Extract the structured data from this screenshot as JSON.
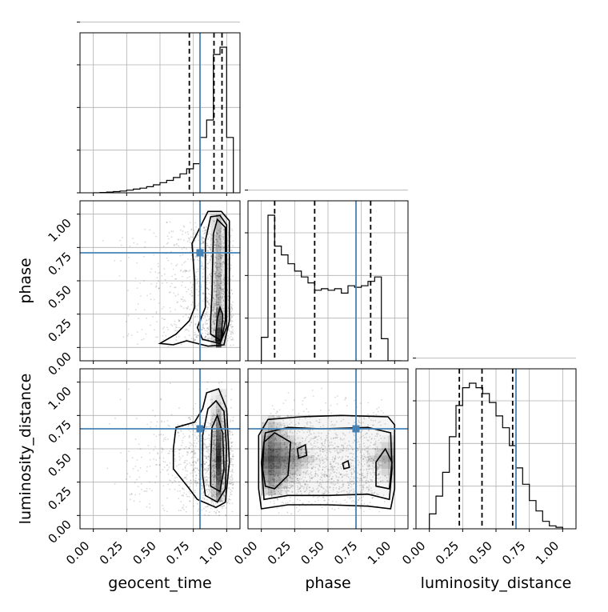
{
  "chart_data": {
    "type": "corner",
    "parameters": [
      "geocent_time",
      "phase",
      "luminosity_distance"
    ],
    "tick_labels": [
      "0.00",
      "0.25",
      "0.50",
      "0.75",
      "1.00"
    ],
    "tick_values": [
      0,
      0.25,
      0.5,
      0.75,
      1.0
    ],
    "axis_range": [
      -0.1,
      1.1
    ],
    "truth_color": "#4682b4",
    "grid": true,
    "truths": {
      "geocent_time": 0.8,
      "phase": 0.71,
      "luminosity_distance": 0.65
    },
    "quantiles": {
      "geocent_time": [
        0.72,
        0.905,
        0.965
      ],
      "phase": [
        0.1,
        0.4,
        0.82
      ],
      "luminosity_distance": [
        0.225,
        0.395,
        0.625
      ]
    },
    "histograms": {
      "geocent_time": {
        "edges": [
          0.0,
          0.05,
          0.1,
          0.15,
          0.2,
          0.25,
          0.3,
          0.35,
          0.4,
          0.45,
          0.5,
          0.55,
          0.6,
          0.65,
          0.7,
          0.75,
          0.8,
          0.85,
          0.9,
          0.95,
          1.0,
          1.05
        ],
        "counts": [
          0,
          0.002,
          0.005,
          0.008,
          0.012,
          0.018,
          0.025,
          0.032,
          0.042,
          0.055,
          0.07,
          0.085,
          0.105,
          0.13,
          0.165,
          0.2,
          0.38,
          0.5,
          0.95,
          1.0,
          0.38
        ]
      },
      "phase": {
        "edges": [
          0.0,
          0.05,
          0.1,
          0.15,
          0.2,
          0.25,
          0.3,
          0.35,
          0.4,
          0.45,
          0.5,
          0.55,
          0.6,
          0.65,
          0.7,
          0.75,
          0.8,
          0.85,
          0.9,
          0.95,
          1.0,
          1.05
        ],
        "counts": [
          0.16,
          0.99,
          0.78,
          0.72,
          0.66,
          0.61,
          0.57,
          0.53,
          0.48,
          0.49,
          0.48,
          0.49,
          0.46,
          0.51,
          0.5,
          0.51,
          0.54,
          0.57,
          0.15,
          0.0,
          0.0
        ]
      },
      "luminosity_distance": {
        "edges": [
          0.0,
          0.05,
          0.1,
          0.15,
          0.2,
          0.25,
          0.3,
          0.35,
          0.4,
          0.45,
          0.5,
          0.55,
          0.6,
          0.65,
          0.7,
          0.75,
          0.8,
          0.85,
          0.9,
          0.95,
          1.0
        ],
        "counts": [
          0.1,
          0.22,
          0.38,
          0.62,
          0.83,
          0.95,
          0.98,
          0.95,
          0.91,
          0.85,
          0.76,
          0.68,
          0.56,
          0.41,
          0.3,
          0.19,
          0.12,
          0.05,
          0.02,
          0.01
        ]
      }
    },
    "contour_levels": [
      "outer",
      "middle",
      "inner"
    ],
    "density_peaks": {
      "phase_vs_geocent_time": {
        "x": 0.94,
        "y": 0.08
      },
      "luminosity_distance_vs_geocent_time": {
        "x": 0.94,
        "y": 0.4
      },
      "luminosity_distance_vs_phase": {
        "x": 0.05,
        "y": 0.4
      }
    }
  }
}
